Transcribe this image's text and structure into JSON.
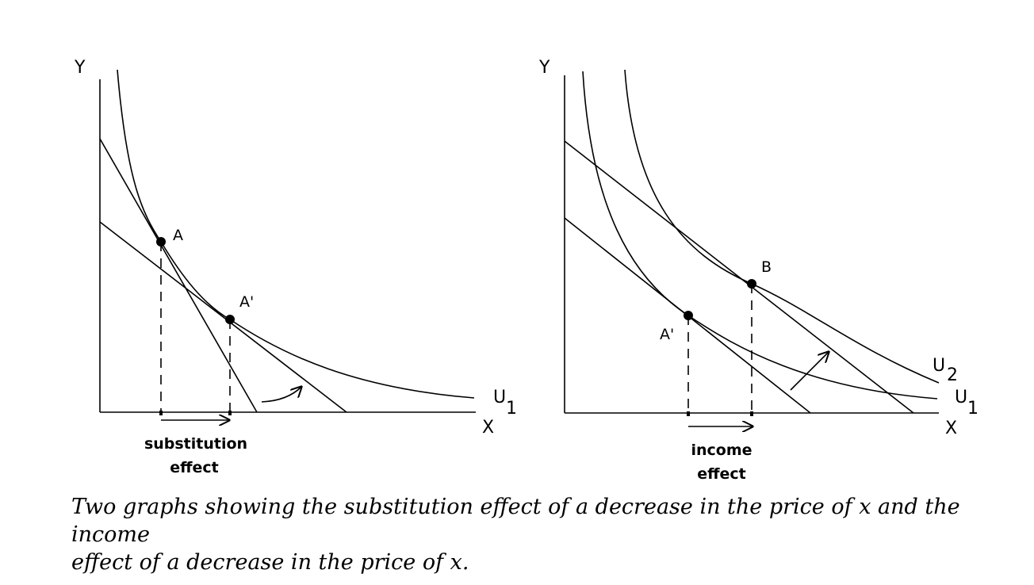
{
  "left_graph": {
    "y_axis_label": "Y",
    "x_axis_label": "X",
    "curve_label": "U",
    "curve_subscript": "1",
    "point_a_label": "A",
    "point_a_prime_label": "A'",
    "effect_line1": "substitution",
    "effect_line2": "effect"
  },
  "right_graph": {
    "y_axis_label": "Y",
    "x_axis_label": "X",
    "curve2_label": "U",
    "curve2_subscript": "2",
    "curve1_label": "U",
    "curve1_subscript": "1",
    "point_b_label": "B",
    "point_a_prime_label": "A'",
    "effect_line1": "income",
    "effect_line2": "effect"
  },
  "caption": {
    "line1": "Two graphs showing the substitution effect of a decrease in the price of x and the income",
    "line2": "effect of a decrease in the price of x."
  }
}
